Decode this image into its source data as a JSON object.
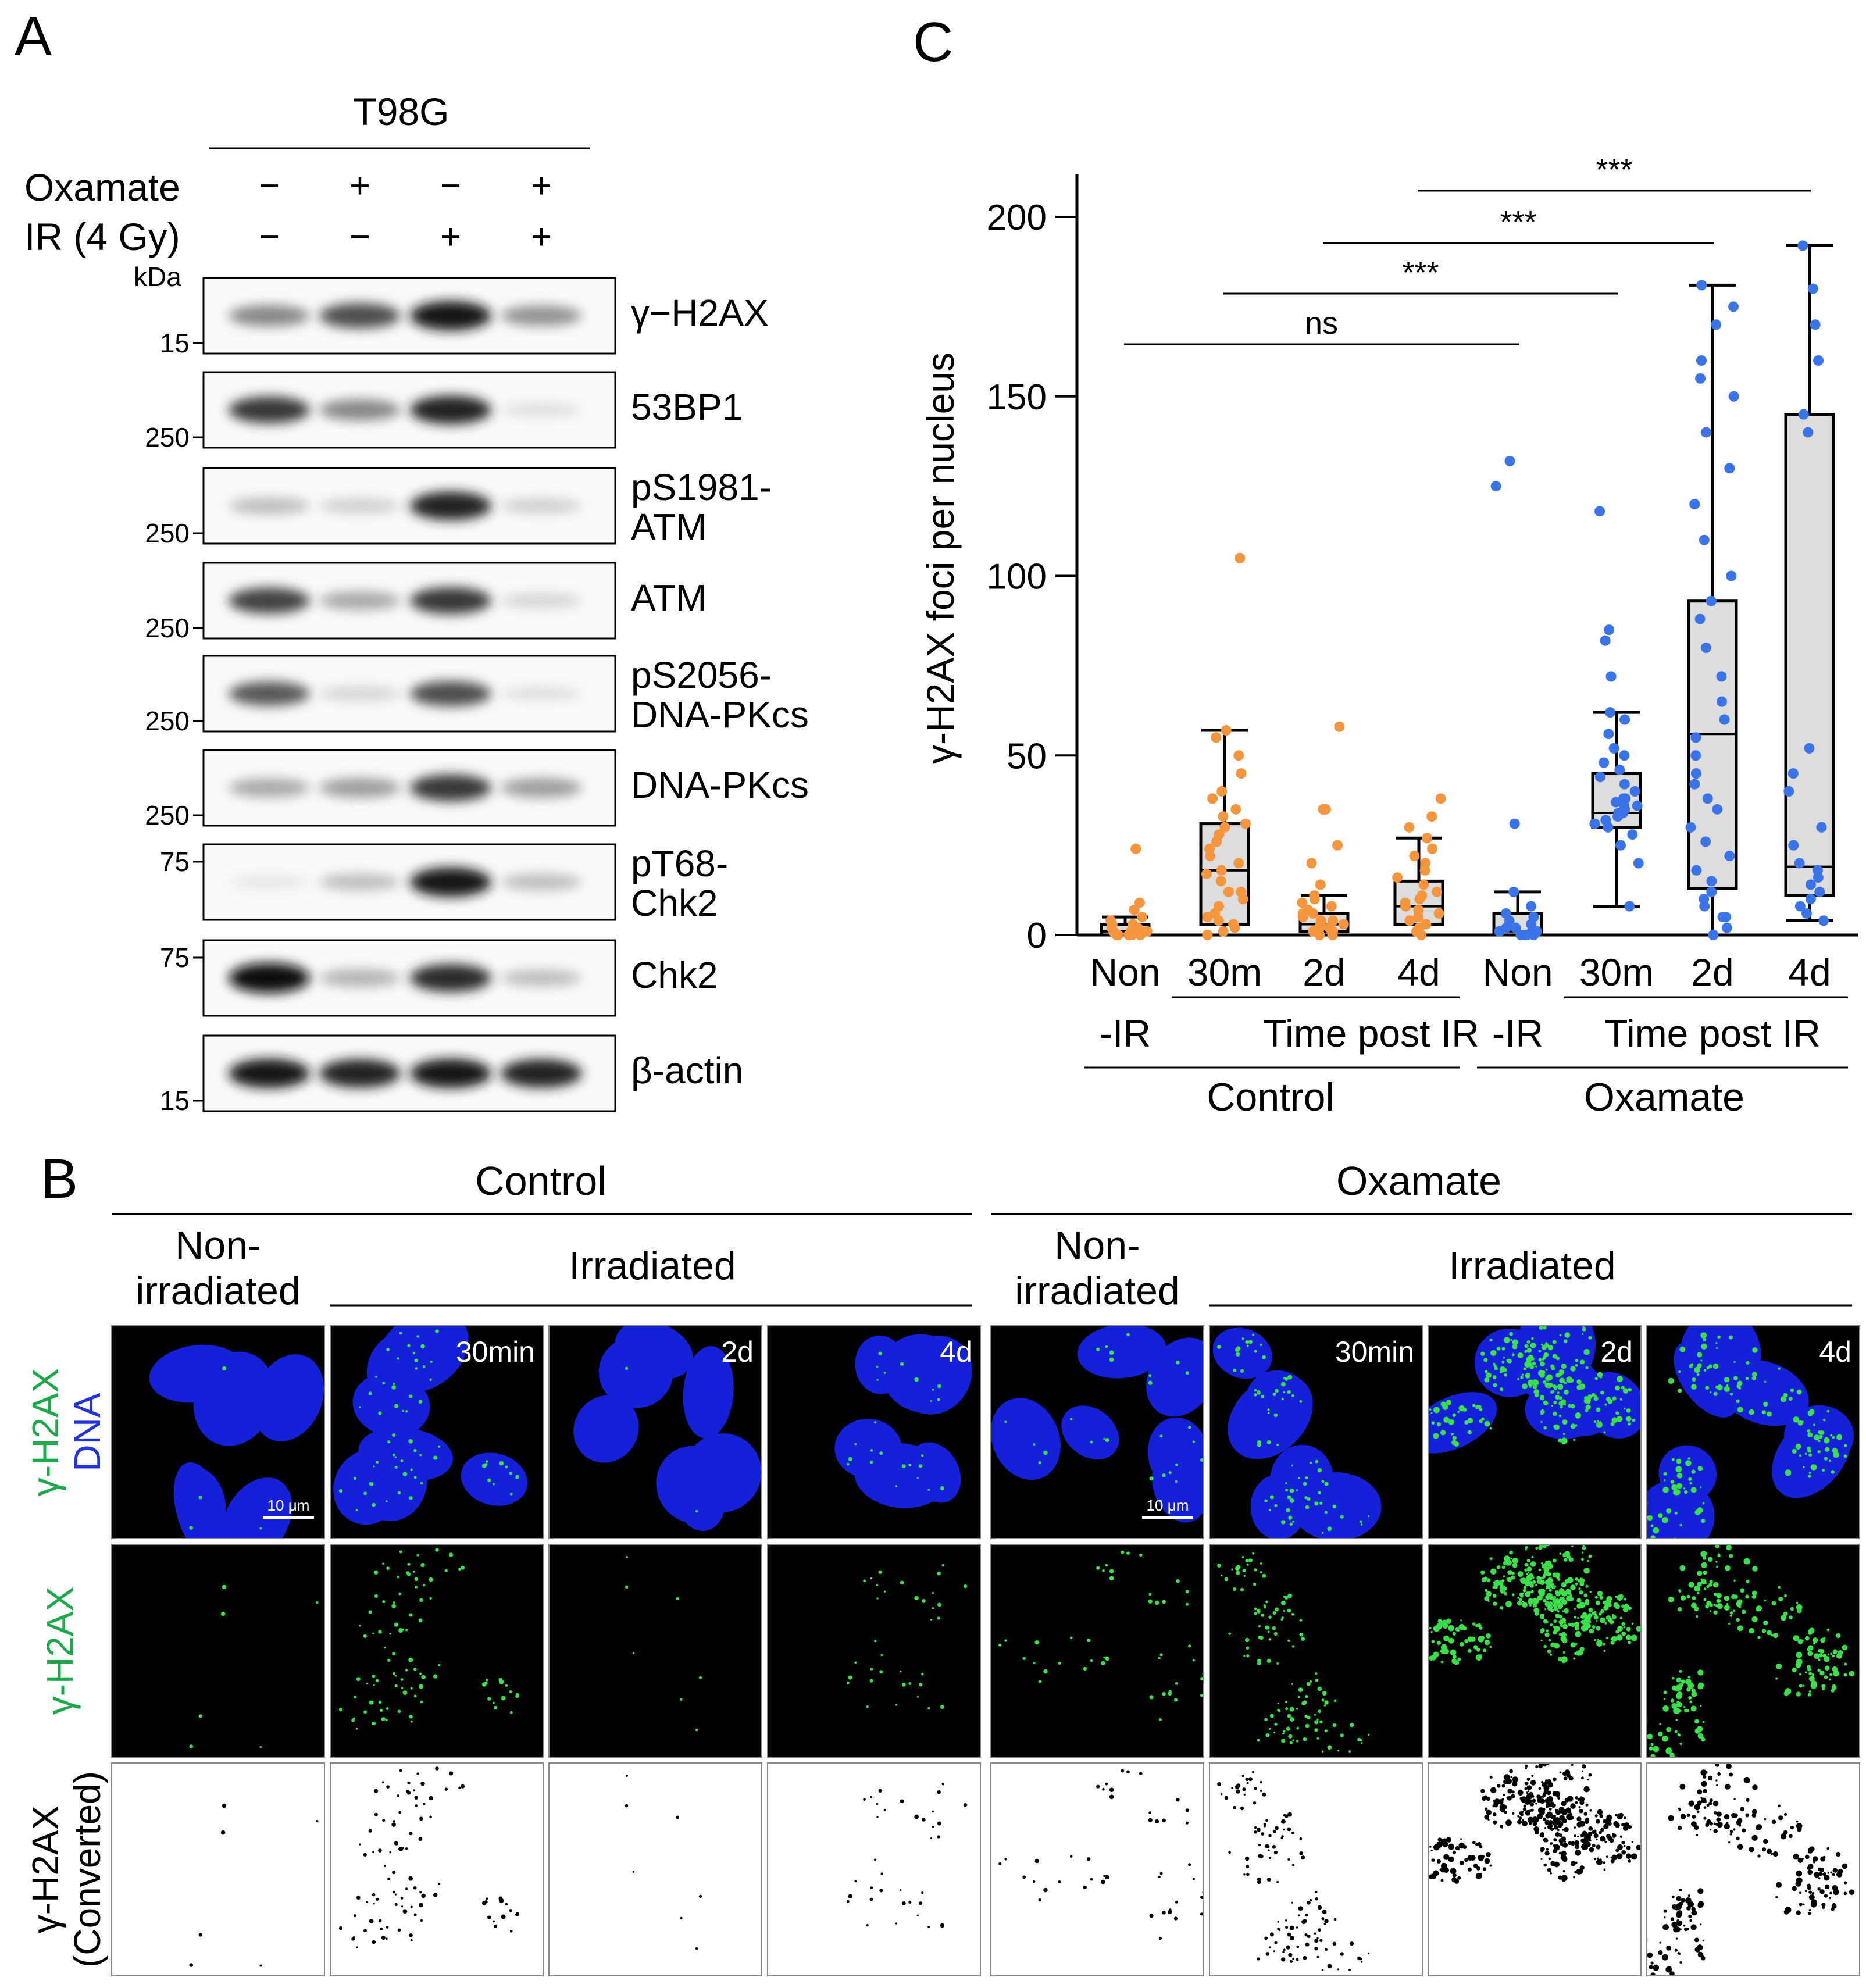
{
  "panels": {
    "a": "A",
    "b": "B",
    "c": "C"
  },
  "western": {
    "cell_line": "T98G",
    "rows": [
      {
        "label": "Oxamate",
        "values": [
          "−",
          "+",
          "−",
          "+"
        ]
      },
      {
        "label": "IR (4 Gy)",
        "values": [
          "−",
          "−",
          "+",
          "+"
        ]
      }
    ],
    "kda_label": "kDa",
    "blots": [
      {
        "label": "γ−H2AX",
        "marker": "15",
        "intensity": [
          0.45,
          0.7,
          0.95,
          0.4
        ]
      },
      {
        "label": "53BP1",
        "marker": "250",
        "intensity": [
          0.8,
          0.45,
          0.9,
          0.05
        ]
      },
      {
        "label": "pS1981-ATM",
        "label_lines": [
          "pS1981-",
          "ATM"
        ],
        "marker": "250",
        "intensity": [
          0.2,
          0.12,
          0.9,
          0.12
        ]
      },
      {
        "label": "ATM",
        "marker": "250",
        "intensity": [
          0.75,
          0.3,
          0.8,
          0.1
        ]
      },
      {
        "label": "pS2056-DNA-PKcs",
        "label_lines": [
          "pS2056-",
          "DNA-PKcs"
        ],
        "marker": "250",
        "intensity": [
          0.65,
          0.1,
          0.7,
          0.05
        ]
      },
      {
        "label": "DNA-PKcs",
        "marker": "250",
        "intensity": [
          0.3,
          0.35,
          0.8,
          0.35
        ]
      },
      {
        "label": "pT68-Chk2",
        "label_lines": [
          "pT68-",
          "Chk2"
        ],
        "marker": "75",
        "intensity": [
          0.02,
          0.2,
          0.95,
          0.2
        ]
      },
      {
        "label": "Chk2",
        "marker": "75",
        "intensity": [
          1.0,
          0.25,
          0.85,
          0.2
        ]
      },
      {
        "label": "β-actin",
        "marker": "15",
        "intensity": [
          0.95,
          0.9,
          0.95,
          0.9
        ]
      }
    ]
  },
  "microscopy": {
    "groups": [
      "Control",
      "Oxamate"
    ],
    "non_irradiated": [
      "Non-",
      "irradiated"
    ],
    "irradiated": "Irradiated",
    "time_labels": [
      "",
      "30min",
      "2d",
      "4d",
      "",
      "30min",
      "2d",
      "4d"
    ],
    "scale_bar": "10 μm",
    "row_labels": [
      {
        "lines": [
          "γ-H2AX",
          "DNA"
        ],
        "colors": [
          "#1fa84a",
          "#2233dd"
        ]
      },
      {
        "lines": [
          "γ-H2AX"
        ],
        "colors": [
          "#1fa84a"
        ]
      },
      {
        "lines": [
          "γ-H2AX",
          "(Converted)"
        ],
        "colors": [
          "#000000",
          "#000000"
        ]
      }
    ],
    "foci_density": [
      1,
      14,
      1,
      6,
      8,
      22,
      60,
      35
    ]
  },
  "chart_data": {
    "type": "box",
    "ylabel": "γ-H2AX foci per nucleus",
    "ylim": [
      0,
      200
    ],
    "yticks": [
      "0",
      "50",
      "100",
      "150",
      "200"
    ],
    "categories": [
      "Non",
      "30m",
      "2d",
      "4d",
      "Non",
      "30m",
      "2d",
      "4d"
    ],
    "sub_labels": [
      "-IR",
      "Time post IR",
      "-IR",
      "Time post IR"
    ],
    "groups": [
      "Control",
      "Oxamate"
    ],
    "colors": {
      "control": "#f5953d",
      "oxamate": "#3a74e8",
      "box_fill": "#dddddd"
    },
    "boxes": [
      {
        "q1": 0,
        "median": 1,
        "q3": 3,
        "whisker_low": 0,
        "whisker_high": 5
      },
      {
        "q1": 3,
        "median": 18,
        "q3": 31,
        "whisker_low": 0,
        "whisker_high": 57
      },
      {
        "q1": 1,
        "median": 3,
        "q3": 6,
        "whisker_low": 0,
        "whisker_high": 11
      },
      {
        "q1": 3,
        "median": 8,
        "q3": 15,
        "whisker_low": 0,
        "whisker_high": 27
      },
      {
        "q1": 0,
        "median": 1,
        "q3": 6,
        "whisker_low": 0,
        "whisker_high": 12
      },
      {
        "q1": 30,
        "median": 34,
        "q3": 45,
        "whisker_low": 8,
        "whisker_high": 62
      },
      {
        "q1": 13,
        "median": 56,
        "q3": 93,
        "whisker_low": 0,
        "whisker_high": 181
      },
      {
        "q1": 11,
        "median": 19,
        "q3": 145,
        "whisker_low": 4,
        "whisker_high": 192
      }
    ],
    "points": [
      [
        0,
        0,
        1,
        1,
        2,
        3,
        4,
        5,
        7,
        9,
        24,
        0,
        1,
        2,
        0,
        1,
        3,
        2,
        1,
        0
      ],
      [
        0,
        1,
        2,
        4,
        6,
        8,
        10,
        12,
        15,
        18,
        20,
        22,
        24,
        26,
        28,
        30,
        31,
        33,
        35,
        38,
        40,
        45,
        50,
        55,
        57,
        105,
        3,
        5,
        12,
        17
      ],
      [
        0,
        0,
        1,
        1,
        2,
        2,
        3,
        3,
        4,
        5,
        6,
        7,
        8,
        9,
        10,
        11,
        14,
        20,
        25,
        35,
        35,
        58,
        2,
        4,
        6
      ],
      [
        0,
        1,
        2,
        3,
        4,
        5,
        6,
        8,
        10,
        12,
        14,
        16,
        18,
        20,
        22,
        24,
        27,
        30,
        33,
        38,
        7,
        9,
        11
      ],
      [
        0,
        0,
        0,
        0,
        1,
        1,
        1,
        2,
        2,
        3,
        4,
        5,
        6,
        8,
        12,
        31,
        125,
        132,
        0,
        1
      ],
      [
        8,
        20,
        25,
        28,
        30,
        31,
        32,
        33,
        34,
        35,
        36,
        37,
        38,
        40,
        42,
        44,
        46,
        48,
        50,
        52,
        56,
        60,
        62,
        72,
        82,
        85,
        118,
        34,
        36,
        38
      ],
      [
        0,
        2,
        5,
        8,
        12,
        15,
        18,
        22,
        26,
        30,
        35,
        38,
        42,
        45,
        50,
        55,
        60,
        65,
        72,
        80,
        88,
        93,
        100,
        110,
        120,
        130,
        140,
        150,
        155,
        160,
        170,
        175,
        181,
        5,
        10
      ],
      [
        4,
        8,
        10,
        12,
        14,
        16,
        18,
        20,
        25,
        30,
        40,
        45,
        52,
        140,
        145,
        160,
        170,
        180,
        192,
        6
      ]
    ],
    "significance": [
      {
        "from": 0,
        "to": 4,
        "label": "ns"
      },
      {
        "from": 1,
        "to": 5,
        "label": "***"
      },
      {
        "from": 2,
        "to": 6,
        "label": "***"
      },
      {
        "from": 3,
        "to": 7,
        "label": "***"
      }
    ]
  }
}
